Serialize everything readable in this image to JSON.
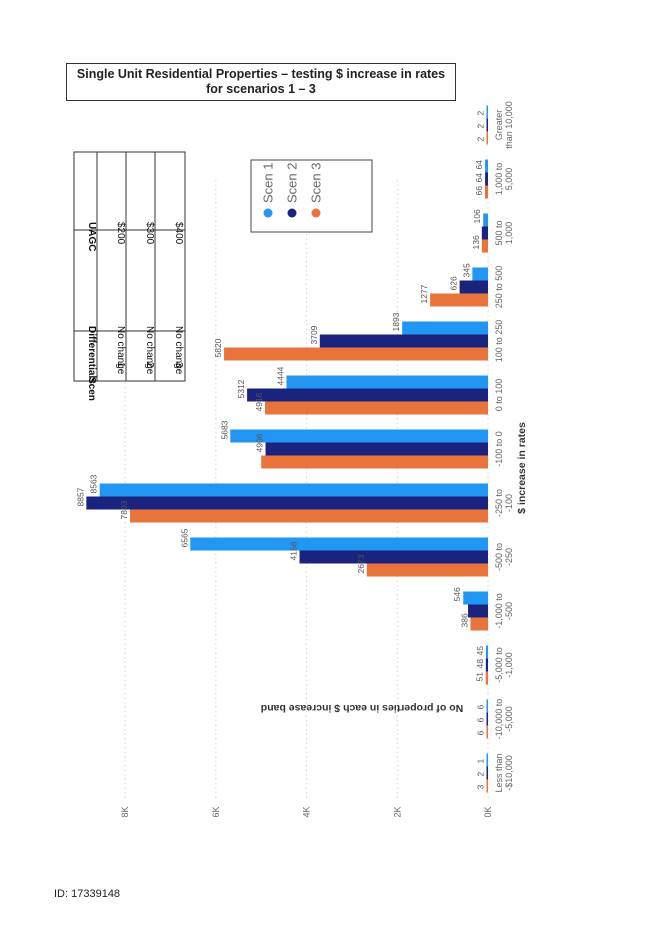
{
  "title": {
    "line1": "Single Unit Residential Properties – testing $ increase in rates",
    "line2": "for scenarios 1 – 3"
  },
  "footer": {
    "id": "ID: 17339148"
  },
  "scenario_table": {
    "headers": [
      "Scen",
      "Differentials",
      "UAGC"
    ],
    "rows": [
      [
        "1",
        "No change",
        "$200"
      ],
      [
        "2",
        "No change",
        "$300"
      ],
      [
        "3",
        "No change",
        "$400"
      ]
    ]
  },
  "chart_data": {
    "type": "bar",
    "orientation": "rotated-90",
    "xlabel": "$ increase in rates",
    "ylabel": "No of properties in each $ increase band",
    "ylim": [
      0,
      8900
    ],
    "yticks": [
      "0K",
      "2K",
      "4K",
      "6K",
      "8K"
    ],
    "ytick_values": [
      0,
      2000,
      4000,
      6000,
      8000
    ],
    "grid": true,
    "legend_position": "top-right",
    "categories": [
      [
        "Less than",
        "-$10,000"
      ],
      [
        "-10,000 to",
        "-5,000"
      ],
      [
        "-5,000 to",
        "-1,000"
      ],
      [
        "-1,000 to",
        "-500"
      ],
      [
        "-500 to",
        "-250"
      ],
      [
        "-250 to",
        "-100"
      ],
      [
        "-100 to 0"
      ],
      [
        "0 to 100"
      ],
      [
        "100 to 250"
      ],
      [
        "250 to 500"
      ],
      [
        "500 to",
        "1,000"
      ],
      [
        "1,000 to",
        "5,000"
      ],
      [
        "Greater",
        "than 10,000"
      ]
    ],
    "series": [
      {
        "name": "Scen 1",
        "color": "#2196f3",
        "values": [
          1,
          6,
          45,
          546,
          6565,
          8563,
          5683,
          4444,
          1893,
          345,
          106,
          64,
          2
        ]
      },
      {
        "name": "Scen 2",
        "color": "#1a237e",
        "values": [
          2,
          6,
          48,
          440,
          4156,
          8857,
          4906,
          5312,
          3709,
          626,
          136,
          64,
          2
        ]
      },
      {
        "name": "Scen 3",
        "color": "#e8743b",
        "values": [
          3,
          6,
          51,
          386,
          2673,
          7893,
          5000,
          4916,
          5820,
          1277,
          136,
          66,
          2
        ]
      }
    ],
    "data_labels": [
      [
        "1",
        "2",
        "3"
      ],
      [
        "6",
        "6",
        "6"
      ],
      [
        "45",
        "48",
        "51"
      ],
      [
        "546",
        "",
        "386"
      ],
      [
        "6565",
        "4156",
        "2673"
      ],
      [
        "8563",
        "8857",
        "7893"
      ],
      [
        "5683",
        "4906",
        ""
      ],
      [
        "4444",
        "5312",
        "4916"
      ],
      [
        "1893",
        "3709",
        "5820"
      ],
      [
        "345",
        "626",
        "1277"
      ],
      [
        "106",
        "",
        "136"
      ],
      [
        "64",
        "64",
        "66"
      ],
      [
        "2",
        "2",
        "2"
      ]
    ]
  }
}
